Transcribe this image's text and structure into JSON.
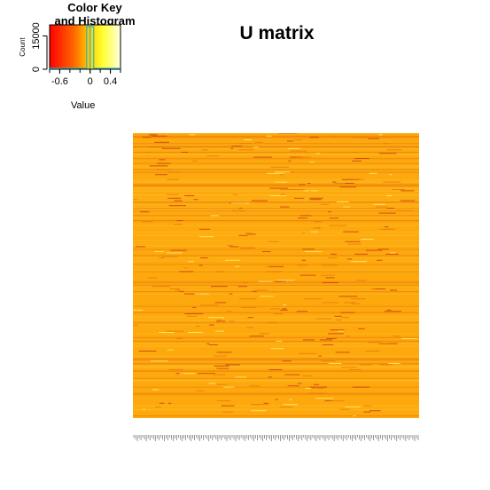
{
  "colors": {
    "heatmap_base": "#fda90e",
    "heatmap_light": "#fdbe24",
    "heatmap_dark": "#e8780c",
    "heatmap_red": "#c83a10",
    "heatmap_yellow": "#fff06a",
    "key_cyan": "#2ab6c6"
  },
  "chart_data": {
    "type": "heatmap",
    "title": "U matrix",
    "color_key": {
      "title_line1": "Color Key",
      "title_line2": "and Histogram",
      "xlabel": "Value",
      "ylabel": "Count",
      "x_ticks": [
        "-0.6",
        "0",
        "0.4"
      ],
      "x_tick_values": [
        -0.6,
        0,
        0.4
      ],
      "xlim": [
        -0.8,
        0.6
      ],
      "y_ticks": [
        "0",
        "15000"
      ],
      "y_tick_values": [
        0,
        15000
      ],
      "ylim": [
        0,
        20000
      ],
      "palette": [
        "#ff0000",
        "#ff8000",
        "#ffff00",
        "#ffffe0"
      ],
      "histogram_peak_value": 0.0
    },
    "column_label_text": "column labels rendered too small to read",
    "value_range": [
      -0.8,
      0.6
    ],
    "dominant_value": 0.0
  }
}
